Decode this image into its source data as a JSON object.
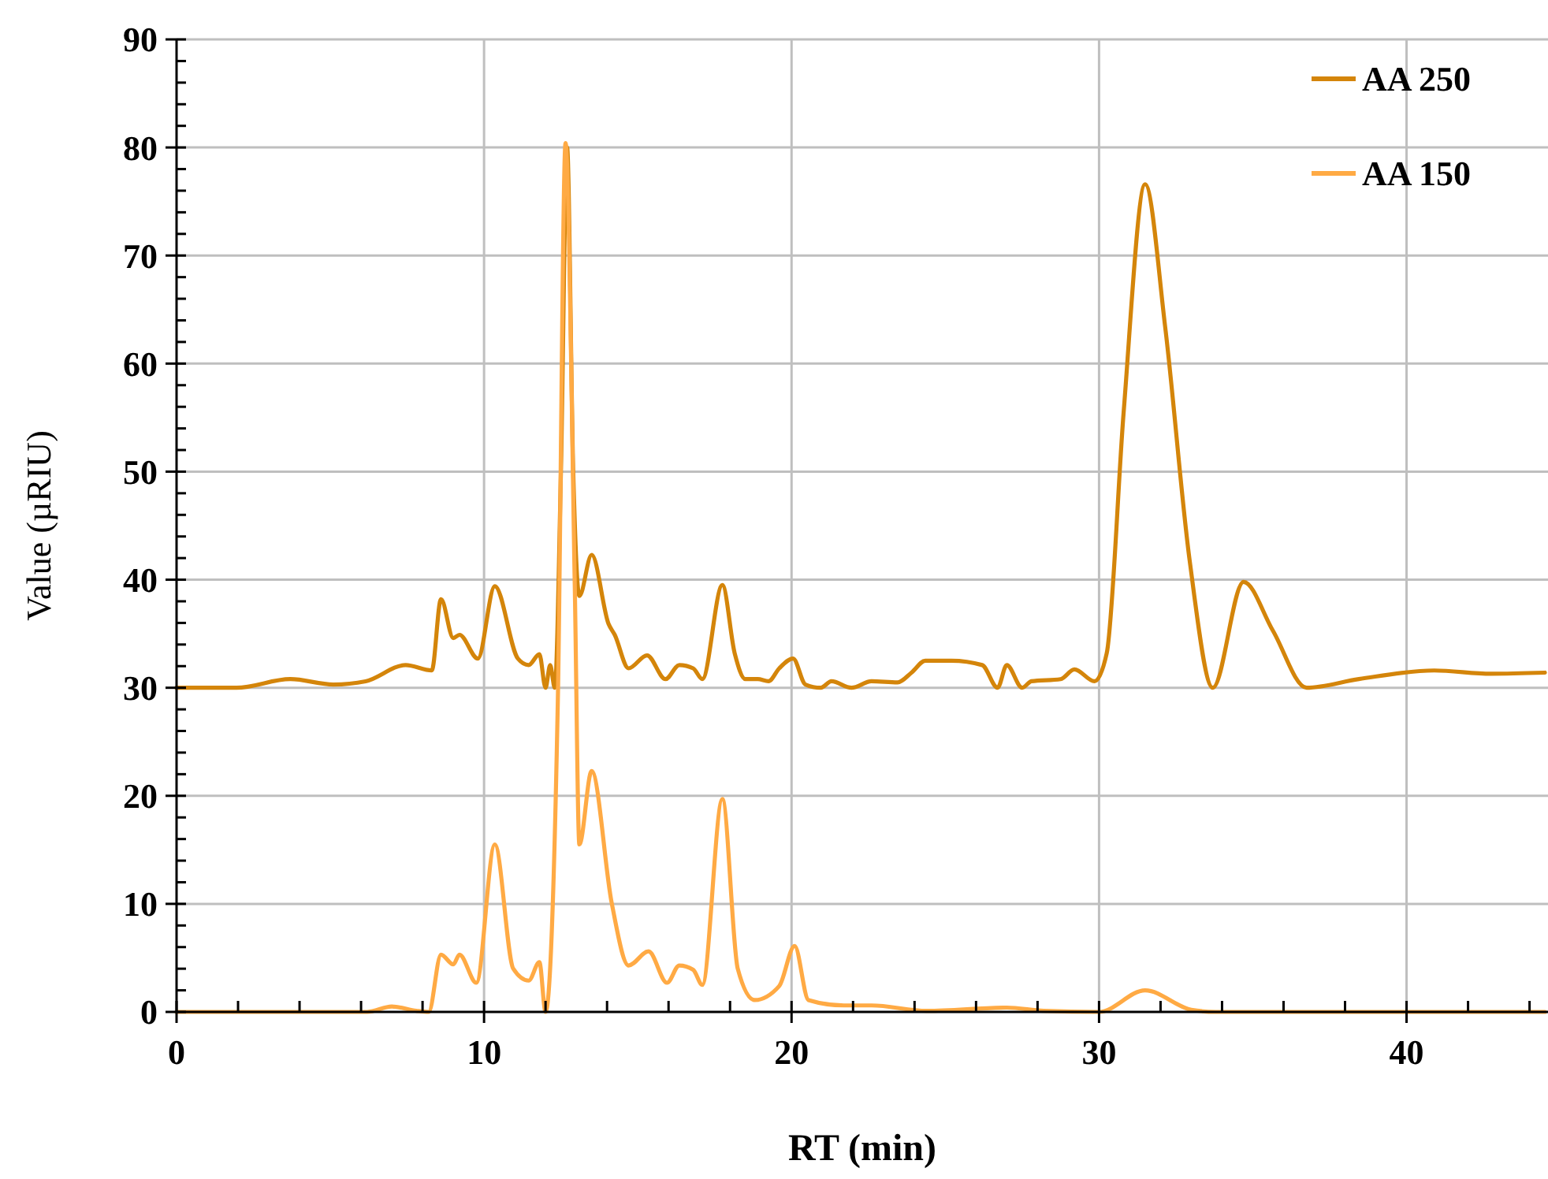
{
  "chart_data": {
    "type": "line",
    "xlabel": "RT (min)",
    "ylabel": "Value (µRIU)",
    "xlim": [
      0,
      44.6
    ],
    "ylim": [
      0,
      90
    ],
    "xticks": [
      0,
      {
        "value": 2,
        "label": null
      },
      {
        "value": 4,
        "label": null
      },
      {
        "value": 6,
        "label": null
      },
      {
        "value": 8,
        "label": null
      },
      10,
      {
        "value": 12,
        "label": null
      },
      {
        "value": 14,
        "label": null
      },
      {
        "value": 16,
        "label": null
      },
      {
        "value": 18,
        "label": null
      },
      20,
      {
        "value": 22,
        "label": null
      },
      {
        "value": 24,
        "label": null
      },
      {
        "value": 26,
        "label": null
      },
      {
        "value": 28,
        "label": null
      },
      30,
      {
        "value": 32,
        "label": null
      },
      {
        "value": 34,
        "label": null
      },
      {
        "value": 36,
        "label": null
      },
      {
        "value": 38,
        "label": null
      },
      40,
      {
        "value": 42,
        "label": null
      },
      {
        "value": 44,
        "label": null
      }
    ],
    "yticks": [
      0,
      {
        "value": 2,
        "label": null
      },
      {
        "value": 4,
        "label": null
      },
      {
        "value": 6,
        "label": null
      },
      {
        "value": 8,
        "label": null
      },
      10,
      {
        "value": 12,
        "label": null
      },
      {
        "value": 14,
        "label": null
      },
      {
        "value": 16,
        "label": null
      },
      {
        "value": 18,
        "label": null
      },
      20,
      {
        "value": 22,
        "label": null
      },
      {
        "value": 24,
        "label": null
      },
      {
        "value": 26,
        "label": null
      },
      {
        "value": 28,
        "label": null
      },
      30,
      {
        "value": 32,
        "label": null
      },
      {
        "value": 34,
        "label": null
      },
      {
        "value": 36,
        "label": null
      },
      {
        "value": 38,
        "label": null
      },
      40,
      {
        "value": 42,
        "label": null
      },
      {
        "value": 44,
        "label": null
      },
      {
        "value": 46,
        "label": null
      },
      {
        "value": 48,
        "label": null
      },
      50,
      {
        "value": 52,
        "label": null
      },
      {
        "value": 54,
        "label": null
      },
      {
        "value": 56,
        "label": null
      },
      {
        "value": 58,
        "label": null
      },
      60,
      {
        "value": 62,
        "label": null
      },
      {
        "value": 64,
        "label": null
      },
      {
        "value": 66,
        "label": null
      },
      {
        "value": 68,
        "label": null
      },
      70,
      {
        "value": 72,
        "label": null
      },
      {
        "value": 74,
        "label": null
      },
      {
        "value": 76,
        "label": null
      },
      {
        "value": 78,
        "label": null
      },
      80,
      {
        "value": 82,
        "label": null
      },
      {
        "value": 84,
        "label": null
      },
      {
        "value": 86,
        "label": null
      },
      {
        "value": 88,
        "label": null
      },
      90
    ],
    "grid": true,
    "legend": "top right",
    "marker": "none",
    "line_style": "solid",
    "series": [
      {
        "name": "AA 250",
        "color": "#d4850a",
        "x": [
          0,
          1.95,
          3.7,
          5.1,
          6.15,
          7.45,
          8.3,
          8.6,
          9.0,
          9.2,
          9.8,
          10.35,
          11.1,
          11.45,
          11.8,
          12.0,
          12.15,
          12.3,
          12.5,
          12.7,
          12.9,
          13.1,
          13.5,
          14.05,
          14.25,
          14.7,
          15.3,
          15.9,
          16.35,
          16.8,
          17.1,
          17.75,
          18.15,
          18.5,
          18.9,
          19.25,
          19.6,
          20.05,
          20.45,
          20.95,
          21.3,
          21.95,
          22.6,
          23.45,
          23.9,
          24.35,
          25.2,
          26.2,
          26.7,
          27.0,
          27.5,
          27.8,
          28.75,
          29.2,
          29.85,
          30.25,
          30.8,
          31.5,
          32.15,
          32.95,
          33.7,
          34.7,
          35.65,
          36.75,
          38.45,
          40.9,
          42.75,
          44.5
        ],
        "values": [
          30,
          30,
          30.8,
          30.3,
          30.6,
          32.1,
          31.6,
          38.2,
          34.6,
          34.9,
          32.7,
          39.4,
          32.7,
          32.1,
          33.1,
          30,
          32.1,
          30,
          50,
          80,
          50,
          38.5,
          42.3,
          35.9,
          34.9,
          31.8,
          33,
          30.8,
          32.1,
          31.8,
          30.8,
          39.5,
          33.2,
          30.8,
          30.8,
          30.6,
          31.8,
          32.7,
          30.3,
          30,
          30.6,
          30,
          30.6,
          30.5,
          31.4,
          32.5,
          32.5,
          32.1,
          30,
          32.1,
          30,
          30.6,
          30.8,
          31.7,
          30.6,
          33.2,
          55.5,
          76.6,
          63.4,
          41.7,
          30,
          39.8,
          35.3,
          30,
          30.8,
          31.6,
          31.3,
          31.4
        ]
      },
      {
        "name": "AA 150",
        "color": "#ffaa44",
        "x": [
          0,
          6.2,
          7.0,
          7.8,
          8.2,
          8.6,
          9.0,
          9.2,
          9.75,
          10.35,
          10.95,
          11.45,
          11.8,
          12.0,
          12.4,
          12.65,
          12.95,
          13.1,
          13.5,
          14.15,
          14.7,
          15.35,
          15.95,
          16.35,
          16.8,
          17.1,
          17.75,
          18.25,
          18.8,
          19.6,
          20.1,
          20.55,
          21.7,
          22.6,
          24.4,
          27.0,
          28.2,
          30.0,
          31.5,
          33.0,
          33.8,
          44.5
        ],
        "values": [
          0,
          0,
          0.5,
          0.1,
          0,
          5.3,
          4.4,
          5.3,
          2.7,
          15.5,
          4,
          2.9,
          4.6,
          0,
          28.9,
          80.4,
          39.5,
          15.5,
          22.3,
          10.1,
          4.3,
          5.6,
          2.7,
          4.3,
          3.9,
          2.5,
          19.7,
          4,
          1.1,
          2.4,
          6.1,
          1.1,
          0.6,
          0.6,
          0.1,
          0.4,
          0.1,
          0,
          2,
          0.2,
          0,
          0
        ]
      }
    ]
  }
}
